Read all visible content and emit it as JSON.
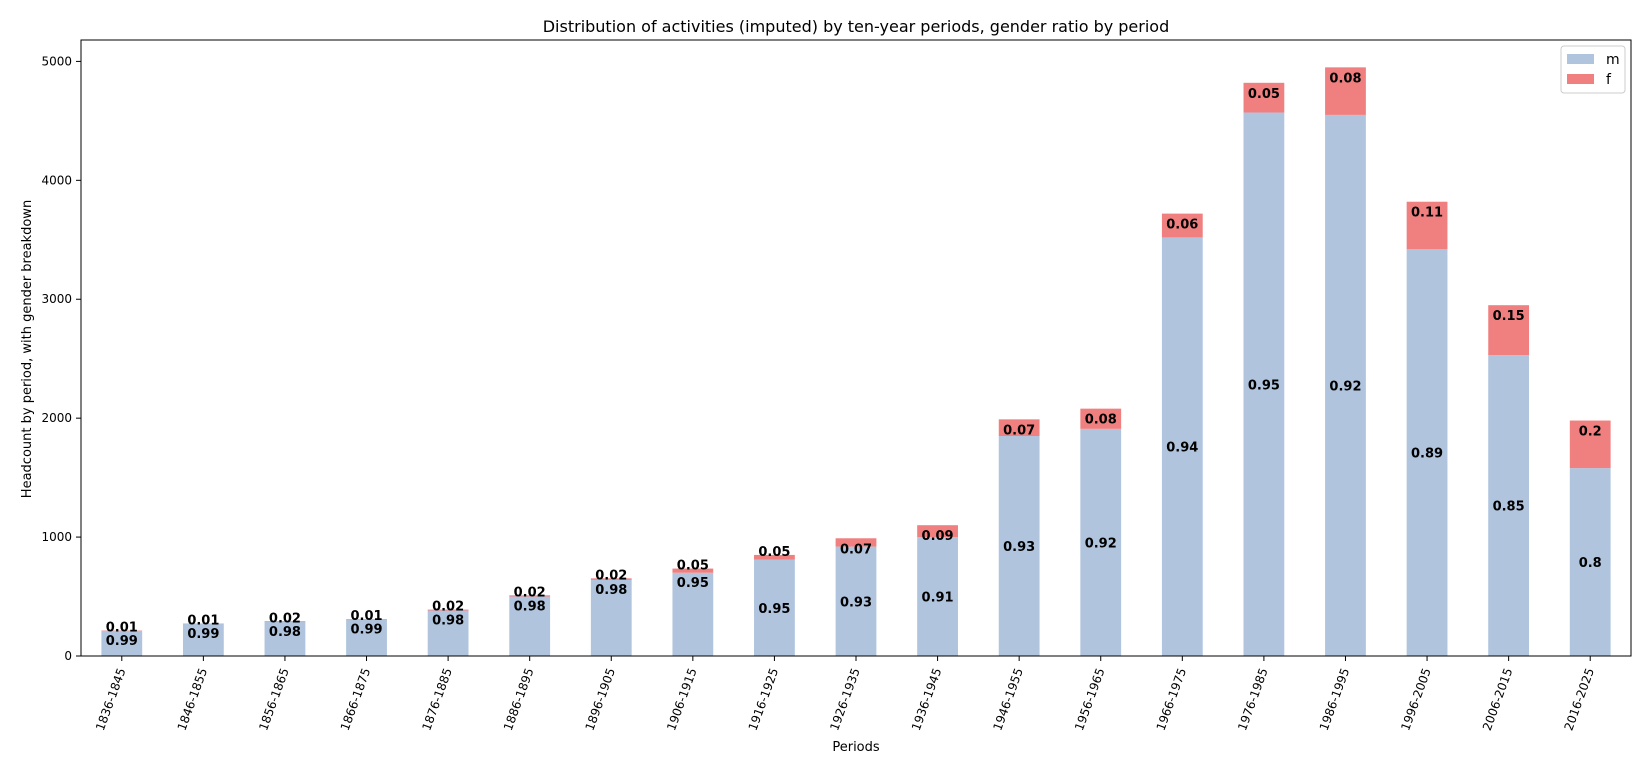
{
  "chart_data": {
    "type": "bar",
    "stacked": true,
    "title": "Distribution of activities (imputed) by ten-year periods, gender ratio by period",
    "xlabel": "Periods",
    "ylabel": "Headcount by period, with gender breakdown",
    "ylim": [
      0,
      5180
    ],
    "yticks": [
      0,
      1000,
      2000,
      3000,
      4000,
      5000
    ],
    "categories": [
      "1836-1845",
      "1846-1855",
      "1856-1865",
      "1866-1875",
      "1876-1885",
      "1886-1895",
      "1896-1905",
      "1906-1915",
      "1916-1925",
      "1926-1935",
      "1936-1945",
      "1946-1955",
      "1956-1965",
      "1966-1975",
      "1976-1985",
      "1986-1995",
      "1996-2005",
      "2006-2015",
      "2016-2025"
    ],
    "series": [
      {
        "name": "m",
        "color": "#b0c4de",
        "values": [
          212,
          270,
          286,
          308,
          382,
          500,
          640,
          700,
          810,
          920,
          1000,
          1850,
          1910,
          3520,
          4570,
          4550,
          3420,
          2530,
          1580
        ],
        "ratio_labels": [
          "0.99",
          "0.99",
          "0.98",
          "0.99",
          "0.98",
          "0.98",
          "0.98",
          "0.95",
          "0.95",
          "0.93",
          "0.91",
          "0.93",
          "0.92",
          "0.94",
          "0.95",
          "0.92",
          "0.89",
          "0.85",
          "0.8"
        ]
      },
      {
        "name": "f",
        "color": "#f08080",
        "values": [
          3,
          3,
          6,
          3,
          8,
          10,
          13,
          35,
          40,
          70,
          100,
          140,
          170,
          200,
          250,
          400,
          400,
          420,
          400
        ],
        "ratio_labels": [
          "0.01",
          "0.01",
          "0.02",
          "0.01",
          "0.02",
          "0.02",
          "0.02",
          "0.05",
          "0.05",
          "0.07",
          "0.09",
          "0.07",
          "0.08",
          "0.06",
          "0.05",
          "0.08",
          "0.11",
          "0.15",
          "0.2"
        ]
      }
    ],
    "legend": {
      "position": "top-right",
      "entries": [
        "m",
        "f"
      ]
    },
    "grid": false
  }
}
